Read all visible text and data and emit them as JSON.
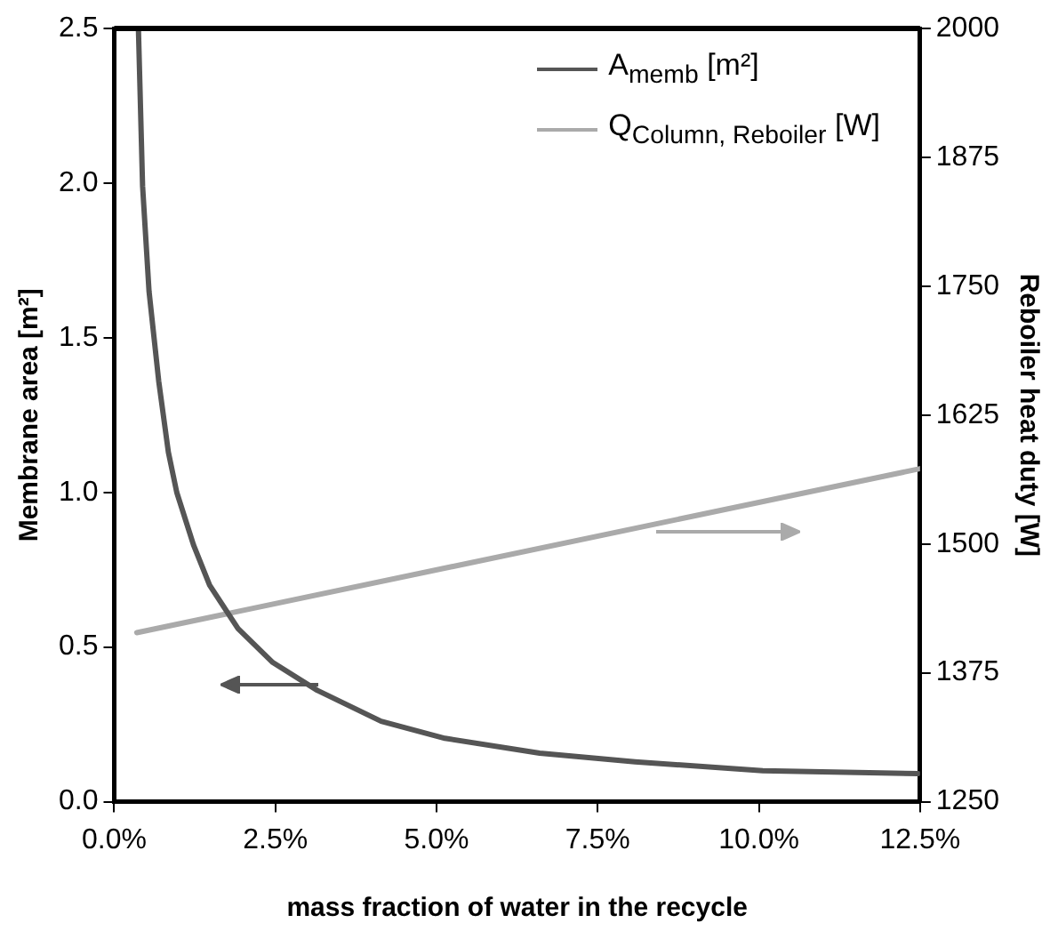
{
  "chart_data": {
    "type": "line",
    "xlabel": "mass fraction of water in the recycle",
    "ylabel": "Membrane area [m²]",
    "y2label": "Reboiler heat duty [W]",
    "xlim": [
      0,
      12.5
    ],
    "xticks": [
      {
        "value": 0,
        "label": "0.0%"
      },
      {
        "value": 2.5,
        "label": "2.5%"
      },
      {
        "value": 5,
        "label": "5.0%"
      },
      {
        "value": 7.5,
        "label": "7.5%"
      },
      {
        "value": 10,
        "label": "10.0%"
      },
      {
        "value": 12.5,
        "label": "12.5%"
      }
    ],
    "ylim": [
      0,
      2.5
    ],
    "yticks": [
      {
        "value": 0,
        "label": "0.0"
      },
      {
        "value": 0.5,
        "label": "0.5"
      },
      {
        "value": 1,
        "label": "1.0"
      },
      {
        "value": 1.5,
        "label": "1.5"
      },
      {
        "value": 2,
        "label": "2.0"
      },
      {
        "value": 2.5,
        "label": "2.5"
      }
    ],
    "y2lim": [
      1250,
      2000
    ],
    "y2ticks": [
      1250,
      1375,
      1500,
      1625,
      1750,
      1875,
      2000
    ],
    "grid": false,
    "legend": "top right",
    "marker": "none",
    "line_style": "solid",
    "series": [
      {
        "name": "A$_{memb}$ [m²]",
        "color": "#555555",
        "x": [
          0.375,
          0.44,
          0.54,
          0.69,
          0.84,
          0.97,
          1.23,
          1.48,
          1.92,
          2.46,
          3.15,
          4.14,
          5.13,
          6.6,
          8.08,
          10.06,
          12.47
        ],
        "values": [
          2.5,
          1.99,
          1.65,
          1.36,
          1.13,
          1.0,
          0.83,
          0.7,
          0.56,
          0.45,
          0.36,
          0.26,
          0.205,
          0.157,
          0.129,
          0.1,
          0.091
        ]
      },
      {
        "name": "Q$_{Column, Reboiler}$ [W]",
        "color": "#aaaaaa",
        "axis": "y2",
        "x": [
          0.35,
          12.5
        ],
        "values": [
          1414,
          1573
        ]
      }
    ]
  }
}
